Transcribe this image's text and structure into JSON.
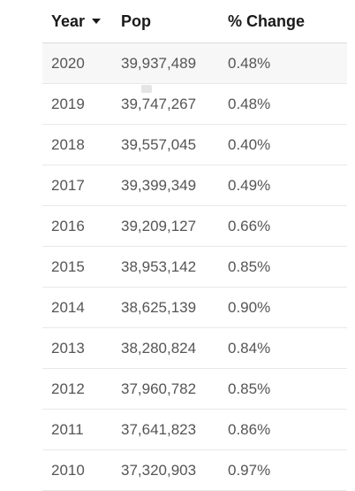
{
  "table": {
    "headers": {
      "year": "Year",
      "pop": "Pop",
      "change": "% Change"
    },
    "sort_icon": "caret-down-icon",
    "rows": [
      {
        "year": "2020",
        "pop": "39,937,489",
        "change": "0.48%"
      },
      {
        "year": "2019",
        "pop": "39,747,267",
        "change": "0.48%"
      },
      {
        "year": "2018",
        "pop": "39,557,045",
        "change": "0.40%"
      },
      {
        "year": "2017",
        "pop": "39,399,349",
        "change": "0.49%"
      },
      {
        "year": "2016",
        "pop": "39,209,127",
        "change": "0.66%"
      },
      {
        "year": "2015",
        "pop": "38,953,142",
        "change": "0.85%"
      },
      {
        "year": "2014",
        "pop": "38,625,139",
        "change": "0.90%"
      },
      {
        "year": "2013",
        "pop": "38,280,824",
        "change": "0.84%"
      },
      {
        "year": "2012",
        "pop": "37,960,782",
        "change": "0.85%"
      },
      {
        "year": "2011",
        "pop": "37,641,823",
        "change": "0.86%"
      },
      {
        "year": "2010",
        "pop": "37,320,903",
        "change": "0.97%"
      }
    ]
  }
}
